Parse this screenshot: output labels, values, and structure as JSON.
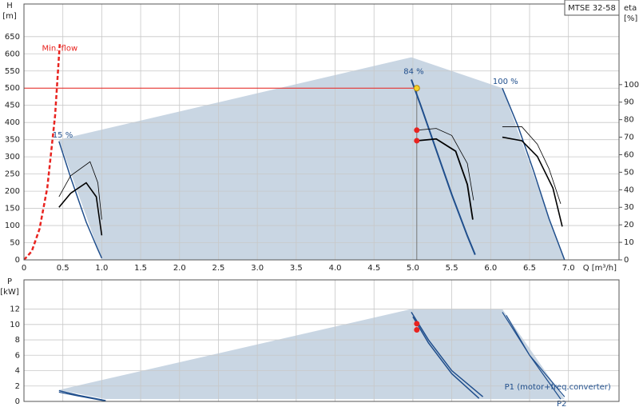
{
  "chart_data": [
    {
      "type": "line",
      "title": "MTSE 32-58",
      "xlabel": "Q [m³/h]",
      "ylabel": [
        "H",
        "[m]"
      ],
      "y2label": [
        "eta",
        "[%]"
      ],
      "xlim": [
        0,
        7.65
      ],
      "xticks": [
        0,
        0.5,
        {
          "value": 1,
          "label": "1.0"
        },
        1.5,
        {
          "value": 2,
          "label": "2.0"
        },
        2.5,
        {
          "value": 3,
          "label": "3.0"
        },
        3.5,
        {
          "value": 4,
          "label": "4.0"
        },
        4.5,
        {
          "value": 5,
          "label": "5.0"
        },
        5.5,
        {
          "value": 6,
          "label": "6.0"
        },
        6.5,
        {
          "value": 7,
          "label": "7.0"
        }
      ],
      "ylim": [
        0,
        745
      ],
      "yticks": [
        0,
        50,
        100,
        150,
        200,
        250,
        300,
        350,
        400,
        450,
        500,
        550,
        600,
        650
      ],
      "y2lim": [
        0,
        146
      ],
      "y2ticks": [
        0,
        10,
        20,
        30,
        40,
        50,
        60,
        70,
        80,
        90,
        100
      ],
      "grid": true,
      "series": [
        {
          "kind": "area",
          "color": "#c9d6e3",
          "x": [
            0.45,
            4.98,
            6.15,
            6.95,
            1.0
          ],
          "values": [
            350,
            590,
            500,
            0,
            0
          ]
        },
        {
          "name": "Min. flow",
          "kind": "line",
          "color": "#e8231f",
          "dash": true,
          "width": 2.5,
          "x": [
            0,
            0.1,
            0.2,
            0.3,
            0.4,
            0.46
          ],
          "values": [
            0,
            25,
            90,
            210,
            420,
            628
          ]
        },
        {
          "name": "15 %",
          "kind": "line",
          "color": "#1f4e8c",
          "width": 1.5,
          "x": [
            0.45,
            0.6,
            0.8,
            0.95,
            1.0
          ],
          "values": [
            345,
            240,
            110,
            30,
            5
          ]
        },
        {
          "name": "84 %",
          "kind": "line",
          "color": "#1f4e8c",
          "width": 2,
          "x": [
            4.98,
            5.1,
            5.3,
            5.5,
            5.7,
            5.8
          ],
          "values": [
            525,
            450,
            320,
            190,
            70,
            15
          ]
        },
        {
          "name": "100 %",
          "kind": "line",
          "color": "#1f4e8c",
          "width": 1.5,
          "x": [
            6.15,
            6.35,
            6.55,
            6.75,
            6.95
          ],
          "values": [
            500,
            390,
            260,
            120,
            0
          ]
        },
        {
          "kind": "line",
          "axis": "y2",
          "color": "#000000",
          "width": 0.8,
          "x": [
            0.45,
            0.6,
            0.85,
            0.95,
            1.0
          ],
          "values": [
            36,
            48,
            56,
            44,
            23
          ]
        },
        {
          "kind": "line",
          "axis": "y2",
          "color": "#000000",
          "width": 1.6,
          "x": [
            0.45,
            0.6,
            0.8,
            0.93,
            1.0
          ],
          "values": [
            30,
            38,
            44,
            36,
            14
          ]
        },
        {
          "kind": "line",
          "axis": "y2",
          "color": "#000000",
          "width": 0.8,
          "x": [
            5.05,
            5.3,
            5.5,
            5.7,
            5.78
          ],
          "values": [
            74,
            75,
            71,
            55,
            34
          ]
        },
        {
          "kind": "line",
          "axis": "y2",
          "color": "#000000",
          "width": 1.8,
          "x": [
            5.05,
            5.3,
            5.55,
            5.7,
            5.77
          ],
          "values": [
            68,
            69,
            62,
            43,
            23
          ]
        },
        {
          "kind": "line",
          "axis": "y2",
          "color": "#000000",
          "width": 0.8,
          "x": [
            6.15,
            6.4,
            6.6,
            6.75,
            6.9
          ],
          "values": [
            76,
            76,
            66,
            52,
            32
          ]
        },
        {
          "kind": "line",
          "axis": "y2",
          "color": "#000000",
          "width": 1.6,
          "x": [
            6.15,
            6.4,
            6.6,
            6.8,
            6.92
          ],
          "values": [
            70,
            68,
            59,
            41,
            19
          ]
        },
        {
          "kind": "marker",
          "axis": "y2",
          "color": "#e8231f",
          "x": [
            5.05,
            5.05
          ],
          "values": [
            74,
            68
          ]
        }
      ],
      "duty_point": {
        "x": 5.05,
        "y": 500,
        "color": "#f5d327"
      }
    },
    {
      "type": "line",
      "ylabel": [
        "P",
        "[kW]"
      ],
      "xlim": [
        0,
        7.65
      ],
      "ylim": [
        0,
        15.8
      ],
      "yticks": [
        0,
        2,
        4,
        6,
        8,
        10,
        12
      ],
      "grid": true,
      "series": [
        {
          "kind": "area",
          "color": "#c9d6e3",
          "x": [
            0.45,
            4.98,
            6.15,
            6.95,
            1.05
          ],
          "values": [
            1.5,
            12,
            12,
            0.3,
            0.3
          ]
        },
        {
          "kind": "line",
          "color": "#1f4e8c",
          "width": 1.5,
          "x": [
            0.45,
            0.7,
            1.05
          ],
          "values": [
            1.4,
            0.8,
            0.1
          ]
        },
        {
          "kind": "line",
          "color": "#1f4e8c",
          "width": 1.5,
          "x": [
            4.98,
            5.2,
            5.5,
            5.9
          ],
          "values": [
            11.6,
            8.0,
            4.0,
            0.6
          ]
        },
        {
          "name": "P1 (motor+freq.converter)",
          "kind": "line",
          "color": "#1f4e8c",
          "width": 1.2,
          "x": [
            6.15,
            6.5,
            6.95
          ],
          "values": [
            11.6,
            6.0,
            0.6
          ]
        },
        {
          "kind": "line",
          "color": "#1f4e8c",
          "width": 1.2,
          "x": [
            0.45,
            0.7,
            1.05
          ],
          "values": [
            1.2,
            0.7,
            0.05
          ]
        },
        {
          "kind": "line",
          "color": "#1f4e8c",
          "width": 1.5,
          "x": [
            5.0,
            5.2,
            5.5,
            5.85
          ],
          "values": [
            11.0,
            7.6,
            3.6,
            0.4
          ]
        },
        {
          "name": "P2",
          "kind": "line",
          "color": "#1f4e8c",
          "width": 1.2,
          "x": [
            6.2,
            6.5,
            6.9
          ],
          "values": [
            11.2,
            6.0,
            0.3
          ]
        },
        {
          "kind": "marker",
          "color": "#e8231f",
          "x": [
            5.05,
            5.05
          ],
          "values": [
            10.1,
            9.3
          ]
        }
      ]
    }
  ]
}
